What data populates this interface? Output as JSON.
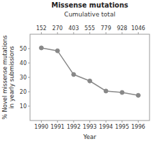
{
  "chart_data": {
    "type": "line",
    "title": "Missense mutations",
    "subtitle": "Cumulative total",
    "x_label": "Year",
    "y_label": "% Novel missense mutations\nin yearly submissions",
    "x": [
      1990,
      1991,
      1992,
      1993,
      1994,
      1995,
      1996
    ],
    "values": [
      50.5,
      48.5,
      32.0,
      27.5,
      20.5,
      19.5,
      17.5
    ],
    "cumulative_totals": [
      152,
      270,
      403,
      555,
      779,
      928,
      1046
    ],
    "xlim": [
      1989.3,
      1996.7
    ],
    "xticks": [
      1990,
      1991,
      1992,
      1993,
      1994,
      1995,
      1996
    ],
    "ylim": [
      0,
      60
    ],
    "yticks": [
      10,
      20,
      30,
      40,
      50
    ],
    "color": "#888888",
    "marker": "circle",
    "grid": false
  }
}
